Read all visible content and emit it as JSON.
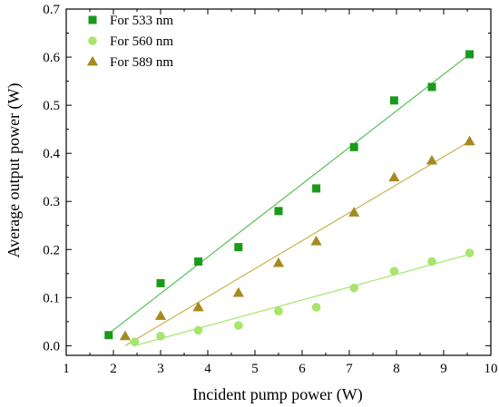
{
  "chart_data": {
    "type": "scatter",
    "title": "",
    "xlabel": "Incident pump power (W)",
    "ylabel": "Average output power (W)",
    "xlim": [
      1,
      10
    ],
    "ylim": [
      -0.02,
      0.7
    ],
    "xticks": [
      1,
      2,
      3,
      4,
      5,
      6,
      7,
      8,
      9,
      10
    ],
    "yticks": [
      0.0,
      0.1,
      0.2,
      0.3,
      0.4,
      0.5,
      0.6,
      0.7
    ],
    "grid": false,
    "legend_position": "top-left",
    "series": [
      {
        "name": "For 533 nm",
        "marker": "square",
        "color": "#1a9a1a",
        "line_color": "#55c055",
        "x": [
          1.9,
          3.0,
          3.8,
          4.65,
          5.5,
          6.3,
          7.1,
          7.95,
          8.75,
          9.55
        ],
        "y": [
          0.022,
          0.13,
          0.175,
          0.205,
          0.28,
          0.327,
          0.413,
          0.51,
          0.538,
          0.606
        ],
        "fit": {
          "x": [
            1.9,
            9.55
          ],
          "y": [
            0.025,
            0.606
          ]
        }
      },
      {
        "name": "For 560 nm",
        "marker": "circle",
        "color": "#a6e66a",
        "line_color": "#a6e66a",
        "x": [
          2.45,
          3.0,
          3.8,
          4.65,
          5.5,
          6.3,
          7.1,
          7.95,
          8.75,
          9.55
        ],
        "y": [
          0.008,
          0.02,
          0.032,
          0.042,
          0.072,
          0.08,
          0.12,
          0.155,
          0.175,
          0.193
        ],
        "fit": {
          "x": [
            2.45,
            9.55
          ],
          "y": [
            0.0,
            0.19
          ]
        }
      },
      {
        "name": "For 589 nm",
        "marker": "triangle",
        "color": "#a68a1e",
        "line_color": "#c9b050",
        "x": [
          2.25,
          3.0,
          3.8,
          4.65,
          5.5,
          6.3,
          7.1,
          7.95,
          8.75,
          9.55
        ],
        "y": [
          0.02,
          0.062,
          0.08,
          0.11,
          0.172,
          0.217,
          0.277,
          0.35,
          0.385,
          0.425
        ],
        "fit": {
          "x": [
            2.25,
            9.55
          ],
          "y": [
            0.0,
            0.425
          ]
        }
      }
    ]
  }
}
